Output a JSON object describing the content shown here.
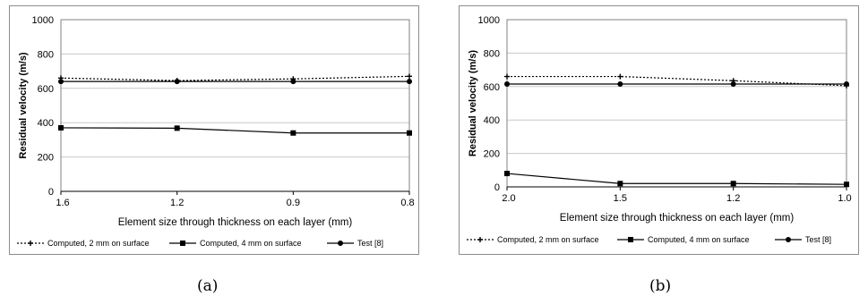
{
  "chart_data": [
    {
      "type": "line",
      "panel_label": "(a)",
      "xlabel": "Element size through thickness on each layer (mm)",
      "ylabel": "Residual velocity (m/s)",
      "categories": [
        "1.6",
        "1.2",
        "0.9",
        "0.8"
      ],
      "ylim": [
        0,
        1000
      ],
      "yticks": [
        0,
        200,
        400,
        600,
        800,
        1000
      ],
      "grid": true,
      "legend_position": "bottom",
      "series": [
        {
          "name": "Computed, 2 mm on surface",
          "style": "dotted",
          "marker": "plus",
          "values": [
            660,
            645,
            655,
            670
          ]
        },
        {
          "name": "Computed, 4 mm on surface",
          "style": "solid",
          "marker": "square",
          "values": [
            370,
            368,
            340,
            340
          ]
        },
        {
          "name": "Test [8]",
          "style": "solid",
          "marker": "circle",
          "values": [
            640,
            640,
            640,
            640
          ]
        }
      ]
    },
    {
      "type": "line",
      "panel_label": "(b)",
      "xlabel": "Element size through thickness on each layer (mm)",
      "ylabel": "Residual velocity (m/s)",
      "categories": [
        "2.0",
        "1.5",
        "1.2",
        "1.0"
      ],
      "ylim": [
        0,
        1000
      ],
      "yticks": [
        0,
        200,
        400,
        600,
        800,
        1000
      ],
      "grid": true,
      "legend_position": "bottom",
      "series": [
        {
          "name": "Computed, 2 mm on surface",
          "style": "dotted",
          "marker": "plus",
          "values": [
            660,
            660,
            635,
            605
          ]
        },
        {
          "name": "Computed, 4 mm on surface",
          "style": "solid",
          "marker": "square",
          "values": [
            80,
            20,
            20,
            15
          ]
        },
        {
          "name": "Test [8]",
          "style": "solid",
          "marker": "circle",
          "values": [
            615,
            615,
            615,
            615
          ]
        }
      ]
    }
  ]
}
